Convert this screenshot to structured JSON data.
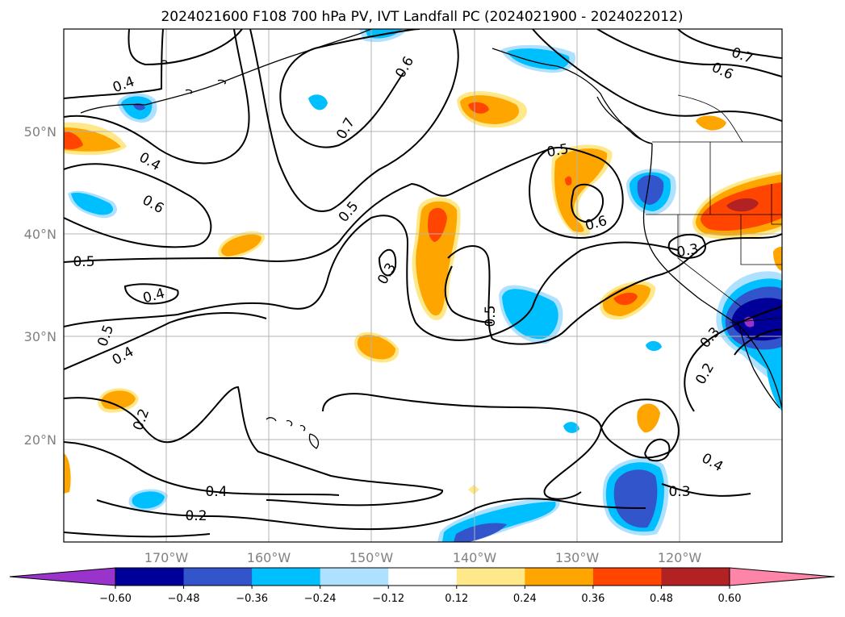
{
  "chart_data": {
    "type": "heatmap",
    "title": "2024021600 F108 700 hPa PV, IVT Landfall PC (2024021900 - 2024022012)",
    "map": {
      "lon_range": [
        -180,
        -110
      ],
      "lat_range": [
        10,
        60
      ],
      "x_ticks": [
        "170°W",
        "160°W",
        "150°W",
        "140°W",
        "130°W",
        "120°W"
      ],
      "y_ticks": [
        "20°N",
        "30°N",
        "40°N",
        "50°N"
      ],
      "grid": true
    },
    "colorbar": {
      "orientation": "horizontal",
      "extend": "both",
      "levels": [
        -0.6,
        -0.48,
        -0.36,
        -0.24,
        -0.12,
        0.12,
        0.24,
        0.36,
        0.48,
        0.6
      ],
      "tick_labels": [
        "−0.60",
        "−0.48",
        "−0.36",
        "−0.24",
        "−0.12",
        "0.12",
        "0.24",
        "0.36",
        "0.48",
        "0.60"
      ],
      "colors": [
        "#9933cc",
        "#000099",
        "#3355cc",
        "#00bfff",
        "#aee0ff",
        "#ffffff",
        "#ffe88a",
        "#ffa500",
        "#ff4500",
        "#b22222",
        "#ff85a8"
      ]
    },
    "contour_labels": [
      "0.2",
      "0.3",
      "0.4",
      "0.5",
      "0.6",
      "0.7"
    ]
  }
}
